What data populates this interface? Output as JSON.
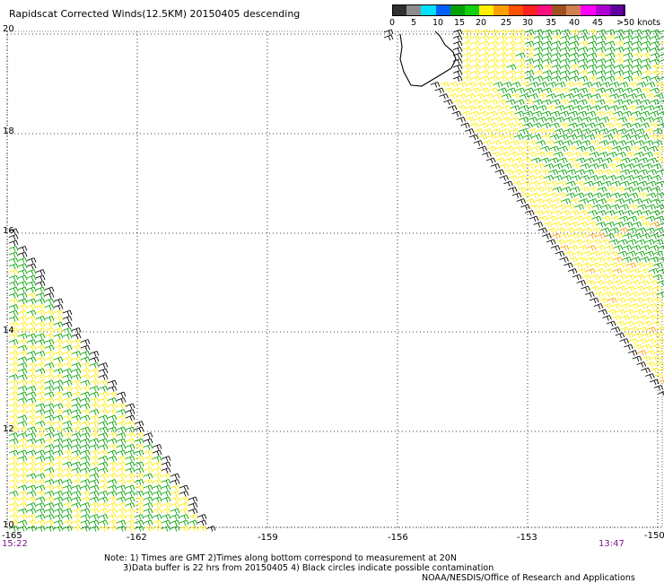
{
  "title": "Rapidscat Corrected Winds(12.5KM) 20150405 descending",
  "legend": {
    "unit": ">50 knots",
    "labels": [
      "0",
      "5",
      "10",
      "15",
      "20",
      "25",
      "30",
      "35",
      "40",
      "45"
    ],
    "colors": [
      "#303030",
      "#8c8c8c",
      "#00e0ff",
      "#0060ff",
      "#00a000",
      "#10d010",
      "#ffee00",
      "#ffa000",
      "#ff5000",
      "#ff2020",
      "#ff1080",
      "#a05020",
      "#d08050",
      "#ff00ff",
      "#b000d0",
      "#6000a0"
    ]
  },
  "lat_labels": [
    "20",
    "18",
    "16",
    "14",
    "12",
    "10"
  ],
  "lon_labels": [
    "-165",
    "-162",
    "-159",
    "-156",
    "-153",
    "-150"
  ],
  "times": {
    "left": "15:22",
    "right": "13:47"
  },
  "notes": {
    "line1": "Note: 1) Times are GMT 2)Times along bottom correspond to measurement at 20N",
    "line2": "3)Data buffer is 22 hrs from 20150405 4) Black circles indicate possible contamination"
  },
  "credit": "NOAA/NESDIS/Office of Research and Applications",
  "colors": {
    "green": "#00a000",
    "yellow": "#ffee00",
    "black": "#000000",
    "orange": "#ffa000"
  }
}
